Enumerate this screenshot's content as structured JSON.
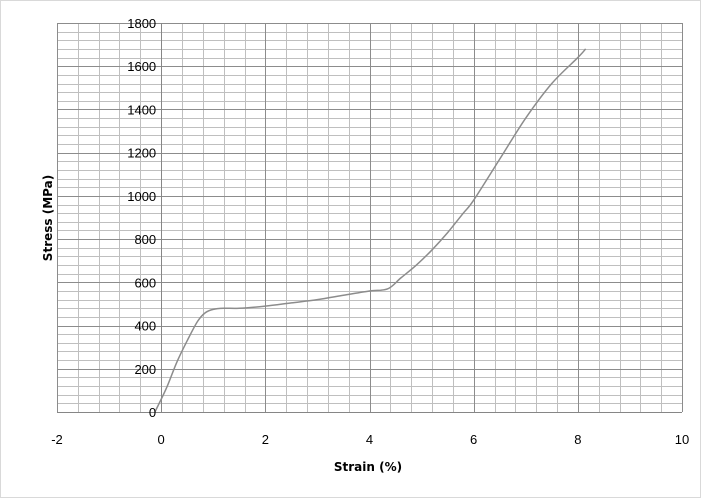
{
  "chart_data": {
    "type": "line",
    "title": "",
    "xlabel": "Strain (%)",
    "ylabel": "Stress (MPa)",
    "xlim": [
      -2,
      10
    ],
    "ylim": [
      0,
      1800
    ],
    "x_major_step": 2,
    "y_major_step": 200,
    "x_minor_step": 0.4,
    "y_minor_step": 40,
    "x_ticks": [
      "-2",
      "0",
      "2",
      "4",
      "6",
      "8",
      "10"
    ],
    "y_ticks": [
      "0",
      "200",
      "400",
      "600",
      "800",
      "1000",
      "1200",
      "1400",
      "1600",
      "1800"
    ],
    "grid": true,
    "legend": "none",
    "colors": {
      "line": "#8c8c8c",
      "major_grid": "#8c8c8c",
      "minor_grid": "#bfbfbf",
      "axis": "#868686"
    },
    "series": [
      {
        "x": [
          -0.12,
          0.1,
          0.3,
          0.5,
          0.7,
          0.85,
          1.0,
          1.2,
          1.5,
          2.0,
          2.5,
          3.0,
          3.5,
          4.0,
          4.35,
          4.6,
          4.9,
          5.2,
          5.5,
          5.8,
          6.0,
          6.5,
          7.0,
          7.5,
          8.0,
          8.15
        ],
        "y": [
          0,
          110,
          230,
          330,
          420,
          460,
          475,
          480,
          480,
          490,
          505,
          520,
          540,
          560,
          570,
          620,
          680,
          750,
          830,
          920,
          980,
          1170,
          1360,
          1520,
          1640,
          1680
        ]
      }
    ]
  }
}
